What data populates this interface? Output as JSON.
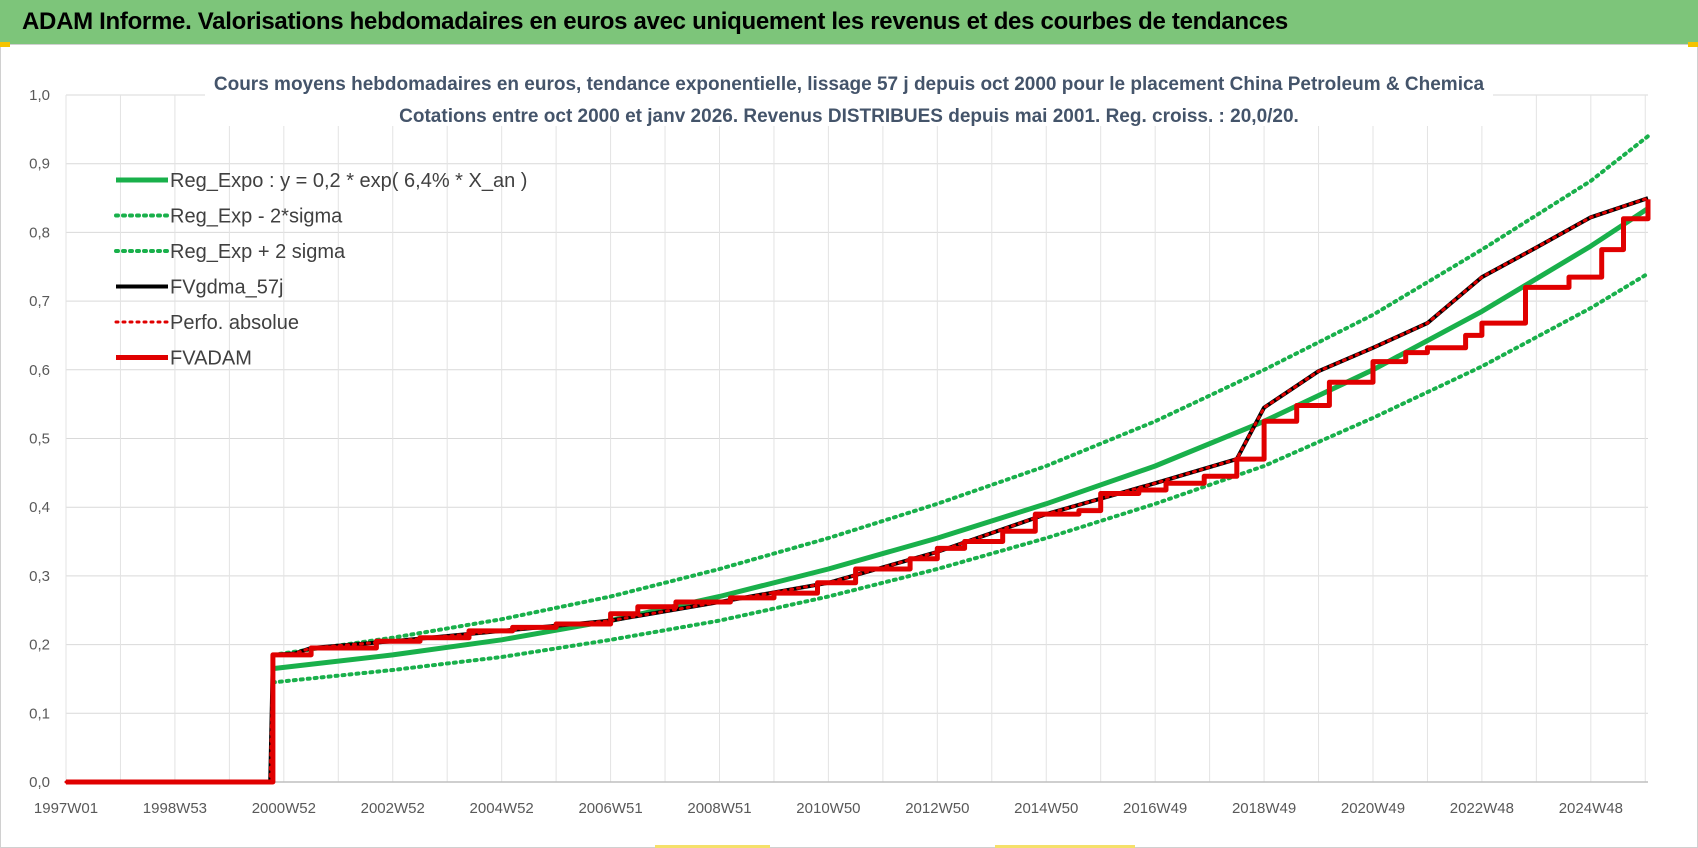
{
  "banner": {
    "title": "ADAM Informe. Valorisations hebdomadaires en euros avec uniquement les revenus et des courbes de tendances"
  },
  "colors": {
    "banner_bg": "#7dc57a",
    "reg_expo": "#19b04b",
    "sigma_bands": "#19b04b",
    "fvgdma": "#000000",
    "perfo": "#e00000",
    "fvadam": "#e00000",
    "title": "#44546a"
  },
  "chart_data": {
    "type": "line",
    "title_line1": "Cours moyens hebdomadaires en euros, tendance exponentielle, lissage 57 j depuis oct 2000 pour le placement China Petroleum & Chemica",
    "title_line2": "Cotations entre oct 2000 et janv 2026. Revenus DISTRIBUES depuis mai 2001. Reg. croiss. : 20,0/20.",
    "xlabel": "",
    "ylabel": "",
    "x_range": [
      1997.0,
      2026.05
    ],
    "ylim": [
      0.0,
      1.0
    ],
    "y_ticks": [
      "0,0",
      "0,1",
      "0,2",
      "0,3",
      "0,4",
      "0,5",
      "0,6",
      "0,7",
      "0,8",
      "0,9",
      "1,0"
    ],
    "x_tick_labels": [
      {
        "label": "1997W01",
        "x": 1997.0
      },
      {
        "label": "1998W53",
        "x": 1999.0
      },
      {
        "label": "2000W52",
        "x": 2001.0
      },
      {
        "label": "2002W52",
        "x": 2003.0
      },
      {
        "label": "2004W52",
        "x": 2005.0
      },
      {
        "label": "2006W51",
        "x": 2007.0
      },
      {
        "label": "2008W51",
        "x": 2009.0
      },
      {
        "label": "2010W50",
        "x": 2011.0
      },
      {
        "label": "2012W50",
        "x": 2013.0
      },
      {
        "label": "2014W50",
        "x": 2015.0
      },
      {
        "label": "2016W49",
        "x": 2017.0
      },
      {
        "label": "2018W49",
        "x": 2019.0
      },
      {
        "label": "2020W49",
        "x": 2021.0
      },
      {
        "label": "2022W48",
        "x": 2023.0
      },
      {
        "label": "2024W48",
        "x": 2025.0
      }
    ],
    "grid": true,
    "legend_placement": "top-left",
    "legend": [
      {
        "name": "Reg_Expo : y = 0,2 * exp( 6,4% *  X_an )",
        "series": "reg_expo"
      },
      {
        "name": "Reg_Exp - 2*sigma",
        "series": "reg_minus"
      },
      {
        "name": "Reg_Exp + 2 sigma",
        "series": "reg_plus"
      },
      {
        "name": "FVgdma_57j",
        "series": "fvgdma"
      },
      {
        "name": "Perfo. absolue",
        "series": "perfo"
      },
      {
        "name": "FVADAM",
        "series": "fvadam"
      }
    ],
    "series": [
      {
        "key": "reg_expo",
        "style": "solid",
        "color": "#19b04b",
        "width": 5,
        "x": [
          2000.8,
          2003,
          2005,
          2007,
          2009,
          2011,
          2013,
          2015,
          2017,
          2019,
          2021,
          2023,
          2025,
          2026.05
        ],
        "y": [
          0.165,
          0.185,
          0.207,
          0.235,
          0.27,
          0.31,
          0.355,
          0.405,
          0.46,
          0.525,
          0.6,
          0.685,
          0.78,
          0.835
        ]
      },
      {
        "key": "reg_minus",
        "style": "dotted",
        "color": "#19b04b",
        "width": 4,
        "x": [
          2000.8,
          2003,
          2005,
          2007,
          2009,
          2011,
          2013,
          2015,
          2017,
          2019,
          2021,
          2023,
          2025,
          2026.05
        ],
        "y": [
          0.145,
          0.163,
          0.182,
          0.207,
          0.235,
          0.27,
          0.31,
          0.355,
          0.405,
          0.46,
          0.53,
          0.605,
          0.69,
          0.74
        ]
      },
      {
        "key": "reg_plus",
        "style": "dotted",
        "color": "#19b04b",
        "width": 4,
        "x": [
          2000.8,
          2003,
          2005,
          2007,
          2009,
          2011,
          2013,
          2015,
          2017,
          2019,
          2021,
          2023,
          2025,
          2026.05
        ],
        "y": [
          0.185,
          0.21,
          0.237,
          0.27,
          0.31,
          0.355,
          0.405,
          0.46,
          0.525,
          0.6,
          0.68,
          0.775,
          0.875,
          0.94
        ]
      },
      {
        "key": "fvgdma",
        "style": "solid",
        "color": "#000000",
        "width": 4,
        "x": [
          1997.0,
          2000.75,
          2000.8,
          2001.2,
          2001.5,
          2003.0,
          2005.0,
          2007.0,
          2009.0,
          2011.0,
          2013.0,
          2015.0,
          2017.0,
          2018.5,
          2019.0,
          2020.0,
          2021.0,
          2022.0,
          2023.0,
          2024.0,
          2025.0,
          2026.05
        ],
        "y": [
          0.0,
          0.0,
          0.185,
          0.187,
          0.195,
          0.205,
          0.22,
          0.235,
          0.262,
          0.29,
          0.335,
          0.39,
          0.435,
          0.47,
          0.545,
          0.598,
          0.632,
          0.668,
          0.735,
          0.778,
          0.822,
          0.85
        ]
      },
      {
        "key": "perfo",
        "style": "dotted",
        "color": "#e00000",
        "width": 3,
        "x": [
          1997.0,
          2000.75,
          2000.8,
          2001.2,
          2001.5,
          2003.0,
          2005.0,
          2007.0,
          2009.0,
          2011.0,
          2013.0,
          2015.0,
          2017.0,
          2018.5,
          2019.0,
          2020.0,
          2021.0,
          2022.0,
          2023.0,
          2024.0,
          2025.0,
          2026.05
        ],
        "y": [
          0.0,
          0.0,
          0.185,
          0.187,
          0.195,
          0.205,
          0.22,
          0.235,
          0.262,
          0.29,
          0.335,
          0.39,
          0.435,
          0.47,
          0.545,
          0.598,
          0.632,
          0.668,
          0.735,
          0.778,
          0.822,
          0.85
        ]
      },
      {
        "key": "fvadam",
        "style": "step",
        "color": "#e00000",
        "width": 5,
        "x": [
          1997.0,
          2000.75,
          2000.8,
          2001.5,
          2002.7,
          2003.5,
          2004.4,
          2005.2,
          2006.0,
          2007.0,
          2007.5,
          2008.2,
          2009.2,
          2010.0,
          2010.8,
          2011.5,
          2012.5,
          2013.0,
          2013.5,
          2014.2,
          2014.8,
          2015.6,
          2016.0,
          2016.7,
          2017.2,
          2017.9,
          2018.5,
          2019.0,
          2019.6,
          2020.2,
          2021.0,
          2021.6,
          2022.0,
          2022.7,
          2023.0,
          2023.8,
          2024.6,
          2025.2,
          2025.6,
          2026.05
        ],
        "y": [
          0.0,
          0.0,
          0.185,
          0.195,
          0.205,
          0.21,
          0.22,
          0.225,
          0.23,
          0.245,
          0.255,
          0.262,
          0.268,
          0.275,
          0.29,
          0.31,
          0.325,
          0.34,
          0.35,
          0.365,
          0.39,
          0.395,
          0.42,
          0.425,
          0.435,
          0.445,
          0.47,
          0.525,
          0.548,
          0.582,
          0.612,
          0.625,
          0.632,
          0.65,
          0.668,
          0.72,
          0.735,
          0.775,
          0.82,
          0.848
        ]
      }
    ]
  }
}
